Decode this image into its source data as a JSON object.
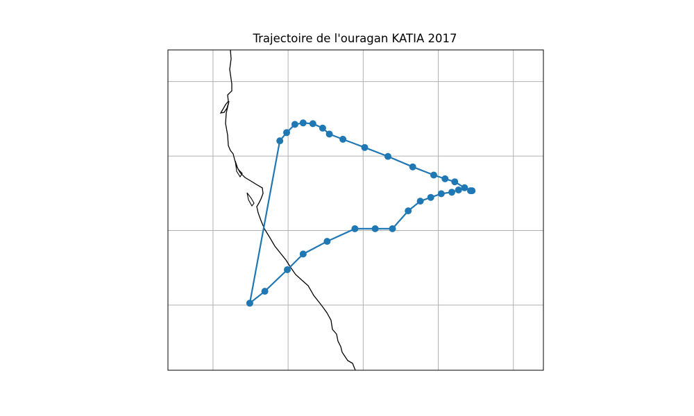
{
  "title": "Trajectoire de l'ouragan KATIA 2017",
  "colors": {
    "track": "#1f77b4",
    "coastline": "#000000",
    "grid": "#b0b0b0",
    "frame": "#000000",
    "background": "#ffffff"
  },
  "map": {
    "projection": "plate-carree",
    "gridlines": true,
    "grid_tick_labels": false,
    "lon_range": [
      -98.4,
      -93.4
    ],
    "lat_range": [
      17.8,
      22.1
    ],
    "grid_lon": [
      -97.8,
      -96.8,
      -95.8,
      -94.8,
      -93.8
    ],
    "grid_lat": [
      21.675,
      20.675,
      19.675,
      18.675
    ]
  },
  "chart_data": {
    "type": "scatter",
    "connected": true,
    "title": "Trajectoire de l'ouragan KATIA 2017",
    "xlabel": "",
    "ylabel": "",
    "series": [
      {
        "marker": "circle",
        "points": [
          [
            -94.37,
            20.21
          ],
          [
            -94.35,
            20.21
          ],
          [
            -94.45,
            20.25
          ],
          [
            -94.58,
            20.33
          ],
          [
            -94.71,
            20.37
          ],
          [
            -94.86,
            20.42
          ],
          [
            -95.14,
            20.53
          ],
          [
            -95.47,
            20.67
          ],
          [
            -95.78,
            20.79
          ],
          [
            -96.07,
            20.9
          ],
          [
            -96.25,
            20.97
          ],
          [
            -96.34,
            21.05
          ],
          [
            -96.47,
            21.11
          ],
          [
            -96.6,
            21.12
          ],
          [
            -96.71,
            21.1
          ],
          [
            -96.82,
            20.99
          ],
          [
            -96.91,
            20.88
          ],
          [
            -97.31,
            18.7
          ],
          [
            -97.11,
            18.86
          ],
          [
            -96.81,
            19.15
          ],
          [
            -96.6,
            19.36
          ],
          [
            -96.28,
            19.53
          ],
          [
            -95.91,
            19.7
          ],
          [
            -95.64,
            19.7
          ],
          [
            -95.41,
            19.7
          ],
          [
            -95.2,
            19.94
          ],
          [
            -95.04,
            20.07
          ],
          [
            -94.9,
            20.12
          ],
          [
            -94.76,
            20.17
          ],
          [
            -94.62,
            20.19
          ],
          [
            -94.53,
            20.22
          ]
        ]
      }
    ]
  }
}
